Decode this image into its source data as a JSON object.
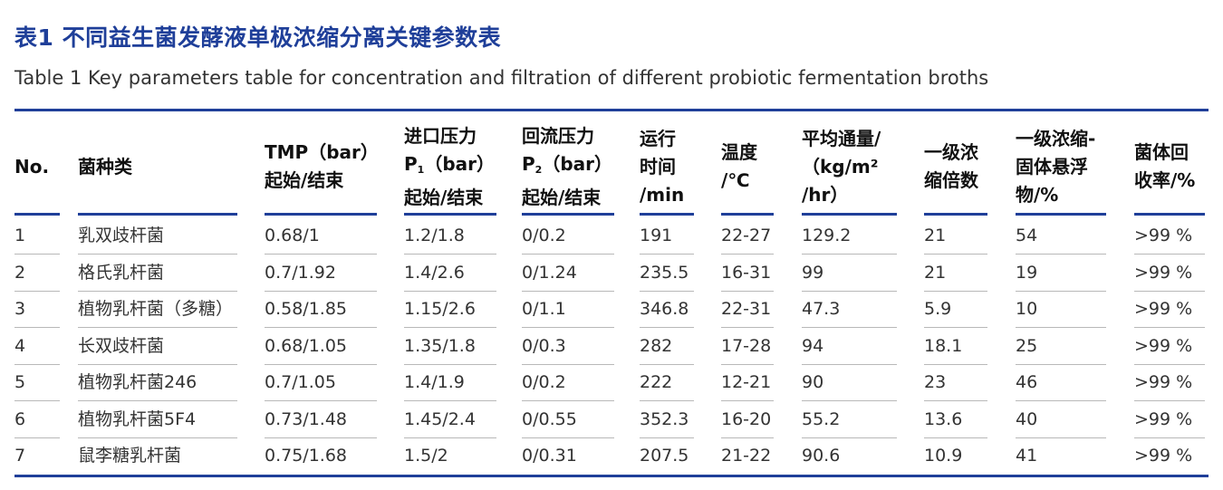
{
  "title_cn": "表1 不同益生菌发酵液单极浓缩分离关键参数表",
  "title_en": "Table 1 Key parameters table for concentration and filtration of different probiotic fermentation broths",
  "columns": [
    {
      "lines": [
        "No."
      ]
    },
    {
      "lines": [
        "菌种类"
      ]
    },
    {
      "lines": [
        "TMP（bar）",
        "起始/结束"
      ]
    },
    {
      "lines": [
        "进口压力",
        "P",
        "（bar）",
        "起始/结束"
      ],
      "sub": "1"
    },
    {
      "lines": [
        "回流压力",
        "P",
        "（bar）",
        "起始/结束"
      ],
      "sub": "2"
    },
    {
      "lines": [
        "运行",
        "时间",
        "/min"
      ]
    },
    {
      "lines": [
        "温度",
        "/℃"
      ]
    },
    {
      "lines": [
        "平均通量/",
        "（kg/m²",
        "/hr）"
      ]
    },
    {
      "lines": [
        "一级浓",
        "缩倍数"
      ]
    },
    {
      "lines": [
        "一级浓缩-",
        "固体悬浮",
        "物/%"
      ]
    },
    {
      "lines": [
        "菌体回",
        "收率/%"
      ]
    }
  ],
  "rows": [
    [
      "1",
      "乳双歧杆菌",
      "0.68/1",
      "1.2/1.8",
      "0/0.2",
      "191",
      "22-27",
      "129.2",
      "21",
      "54",
      ">99 %"
    ],
    [
      "2",
      "格氏乳杆菌",
      "0.7/1.92",
      "1.4/2.6",
      "0/1.24",
      "235.5",
      "16-31",
      "99",
      "21",
      "19",
      ">99 %"
    ],
    [
      "3",
      "植物乳杆菌（多糖）",
      "0.58/1.85",
      "1.15/2.6",
      "0/1.1",
      "346.8",
      "22-31",
      "47.3",
      "5.9",
      "10",
      ">99 %"
    ],
    [
      "4",
      "长双歧杆菌",
      "0.68/1.05",
      "1.35/1.8",
      "0/0.3",
      "282",
      "17-28",
      "94",
      "18.1",
      "25",
      ">99 %"
    ],
    [
      "5",
      "植物乳杆菌246",
      "0.7/1.05",
      "1.4/1.9",
      "0/0.2",
      "222",
      "12-21",
      "90",
      "23",
      "46",
      ">99 %"
    ],
    [
      "6",
      "植物乳杆菌5F4",
      "0.73/1.48",
      "1.45/2.4",
      "0/0.55",
      "352.3",
      "16-20",
      "55.2",
      "13.6",
      "40",
      ">99 %"
    ],
    [
      "7",
      "鼠李糖乳杆菌",
      "0.75/1.68",
      "1.5/2",
      "0/0.31",
      "207.5",
      "21-22",
      "90.6",
      "10.9",
      "41",
      ">99 %"
    ]
  ],
  "colors": {
    "accent": "#1f3f99",
    "rule": "#b8b8b8"
  }
}
